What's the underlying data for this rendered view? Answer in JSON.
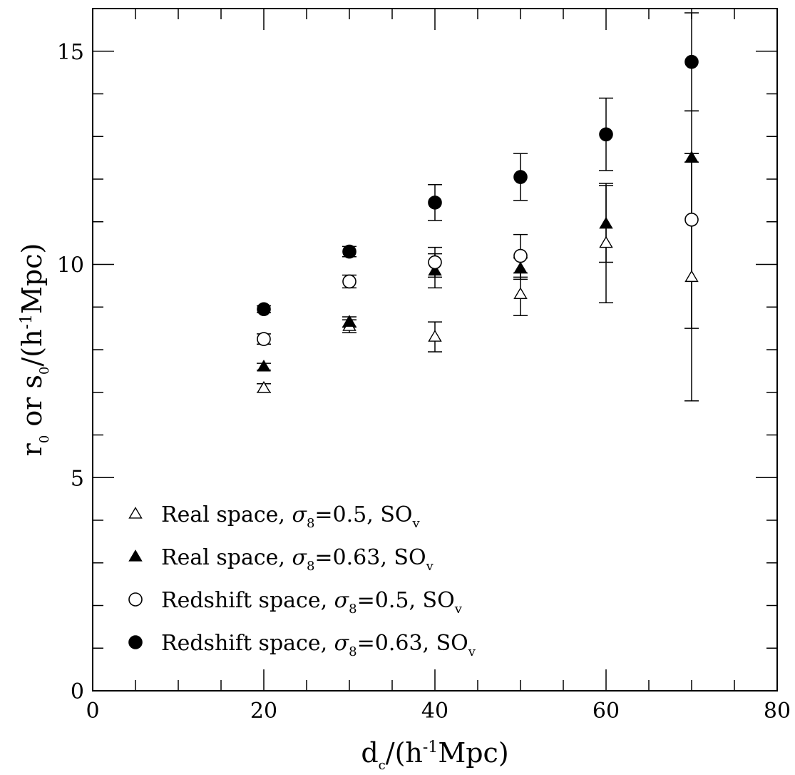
{
  "chart_data": {
    "type": "scatter",
    "xlim": [
      0,
      80
    ],
    "ylim": [
      0,
      16
    ],
    "x_ticks": [
      0,
      20,
      40,
      60,
      80
    ],
    "y_ticks": [
      0,
      5,
      10,
      15
    ],
    "x_minor_step": 5,
    "y_minor_step": 1,
    "xlabel": {
      "main": "d",
      "sub": "c",
      "rest": "/(h",
      "sup": "-1",
      "end": "Mpc)"
    },
    "ylabel": {
      "a": "r",
      "a_sub": "0",
      "mid": " or s",
      "b_sub": "0",
      "rest": "/(h",
      "sup": "-1",
      "end": "Mpc)"
    },
    "grid": false,
    "legend_position": "bottom-left",
    "series": [
      {
        "name": "Real space, σ8=0.5, SOv",
        "legend": {
          "pre": "Real space, ",
          "sigma": "σ",
          "sigma_sub": "8",
          "value": "=0.5, SO",
          "so_sub": "v"
        },
        "marker": "triangle-open",
        "x": [
          20,
          30,
          40,
          50,
          60,
          70
        ],
        "y": [
          7.1,
          8.55,
          8.3,
          9.3,
          10.5,
          9.7
        ],
        "err": [
          0.1,
          0.15,
          0.35,
          0.5,
          1.4,
          2.9
        ]
      },
      {
        "name": "Real space, σ8=0.63, SOv",
        "legend": {
          "pre": "Real space, ",
          "sigma": "σ",
          "sigma_sub": "8",
          "value": "=0.63, SO",
          "so_sub": "v"
        },
        "marker": "triangle-filled",
        "x": [
          20,
          30,
          40,
          50,
          60,
          70
        ],
        "y": [
          7.6,
          8.65,
          9.85,
          9.9,
          10.95,
          12.5
        ],
        "err": [
          0.08,
          0.12,
          0.4,
          0.25,
          0.9,
          0.1
        ]
      },
      {
        "name": "Redshift space, σ8=0.5, SOv",
        "legend": {
          "pre": "Redshift space, ",
          "sigma": "σ",
          "sigma_sub": "8",
          "value": "=0.5, SO",
          "so_sub": "v"
        },
        "marker": "circle-open",
        "x": [
          20,
          30,
          40,
          50,
          60,
          70
        ],
        "y": [
          8.25,
          9.6,
          10.05,
          10.2,
          null,
          11.05
        ],
        "err": [
          0.12,
          0.15,
          0.35,
          0.5,
          null,
          2.55
        ]
      },
      {
        "name": "Redshift space, σ8=0.63, SOv",
        "legend": {
          "pre": "Redshift space, ",
          "sigma": "σ",
          "sigma_sub": "8",
          "value": "=0.63, SO",
          "so_sub": "v"
        },
        "marker": "circle-filled",
        "x": [
          20,
          30,
          40,
          50,
          60,
          70
        ],
        "y": [
          8.95,
          10.3,
          11.45,
          12.05,
          13.05,
          14.75
        ],
        "err": [
          0.08,
          0.12,
          0.42,
          0.55,
          0.85,
          1.15
        ]
      }
    ]
  }
}
